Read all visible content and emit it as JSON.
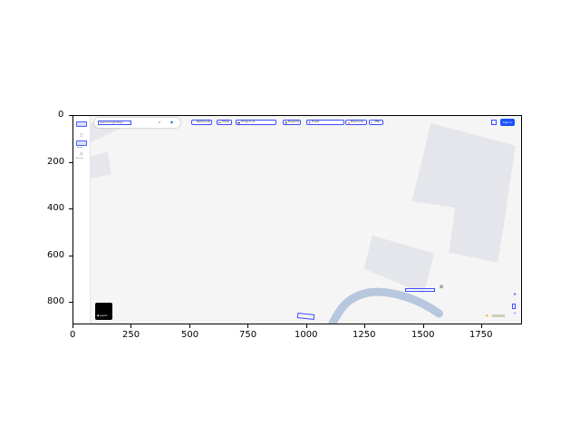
{
  "chart_data": {
    "type": "image",
    "x_ticks": [
      "0",
      "250",
      "500",
      "750",
      "1000",
      "1250",
      "1500",
      "1750"
    ],
    "y_ticks": [
      "0",
      "200",
      "400",
      "600",
      "800"
    ],
    "xlim": [
      0,
      1920
    ],
    "ylim": [
      900,
      0
    ]
  },
  "map": {
    "search": {
      "placeholder": "Search Google Maps",
      "search_icon": "search-icon",
      "directions_icon": "directions-icon"
    },
    "sidebar": {
      "menu_icon": "menu-icon",
      "saved_label": "Saved",
      "recents_label": "Recents"
    },
    "chips": [
      {
        "label": "Restaurants",
        "icon": "🍴"
      },
      {
        "label": "Hotels",
        "icon": "🛏"
      },
      {
        "label": "Things to do",
        "icon": "📷"
      },
      {
        "label": "Museums",
        "icon": "🏛"
      },
      {
        "label": "Transit",
        "icon": "🚆"
      },
      {
        "label": "Pharmacies",
        "icon": "💊"
      },
      {
        "label": "ATMs",
        "icon": "$"
      }
    ],
    "signin": "Sign in",
    "layers_label": "Layers",
    "place_label": "",
    "river_label": "",
    "colors": {
      "accent": "#1a53ff",
      "annotation": "#3b4bff",
      "water": "#b7c7de",
      "building": "#e4e6eb"
    }
  }
}
